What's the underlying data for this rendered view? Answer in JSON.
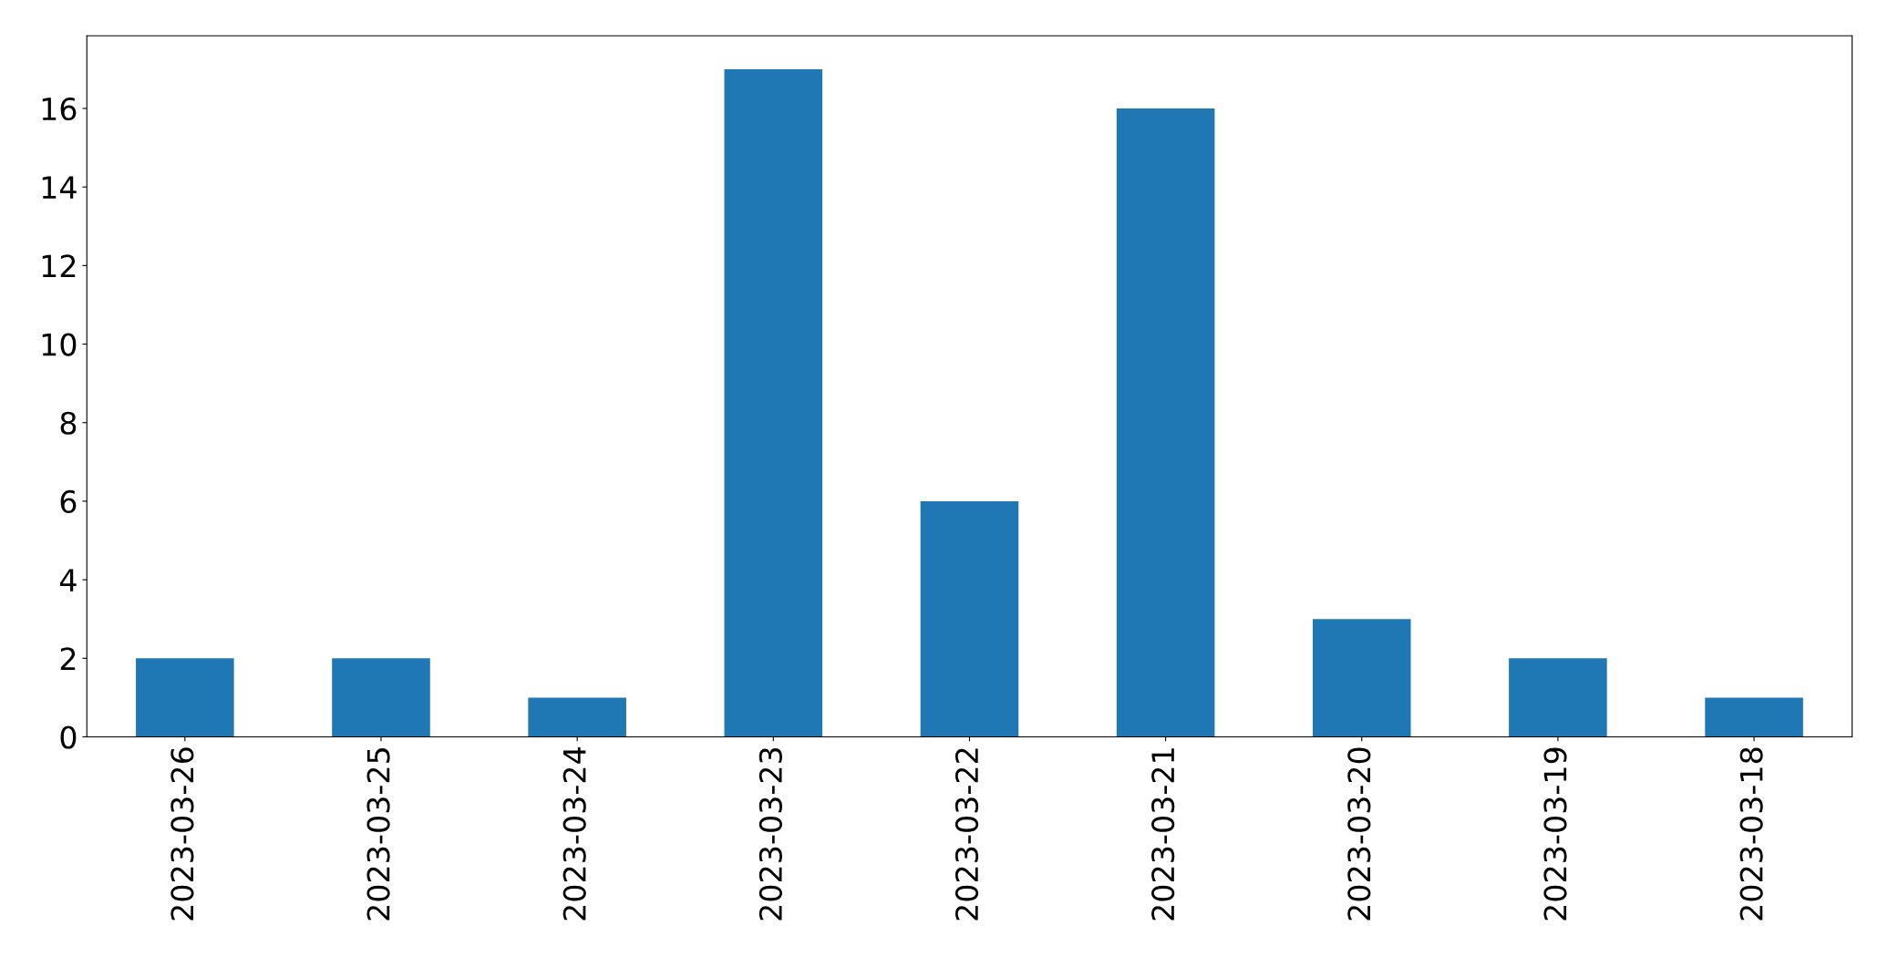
{
  "chart_data": {
    "type": "bar",
    "categories": [
      "2023-03-26",
      "2023-03-25",
      "2023-03-24",
      "2023-03-23",
      "2023-03-22",
      "2023-03-21",
      "2023-03-20",
      "2023-03-19",
      "2023-03-18"
    ],
    "values": [
      2,
      2,
      1,
      17,
      6,
      16,
      3,
      2,
      1
    ],
    "color": "#1f77b4",
    "ylim": [
      0,
      17.85
    ],
    "yticks": [
      0,
      2,
      4,
      6,
      8,
      10,
      12,
      14,
      16
    ],
    "grid": false,
    "legend": false
  }
}
